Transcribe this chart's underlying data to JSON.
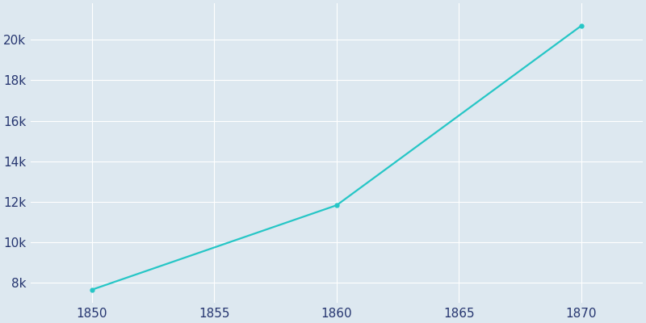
{
  "years": [
    1850,
    1860,
    1870
  ],
  "population": [
    7658,
    11830,
    20700
  ],
  "line_color": "#26c6c6",
  "background_color": "#dde8f0",
  "grid_color": "#ffffff",
  "tick_label_color": "#253570",
  "xlim": [
    1847.5,
    1872.5
  ],
  "ylim": [
    7000,
    21800
  ],
  "xticks": [
    1850,
    1855,
    1860,
    1865,
    1870
  ],
  "yticks": [
    8000,
    10000,
    12000,
    14000,
    16000,
    18000,
    20000
  ],
  "line_width": 1.6,
  "marker_size": 3.5,
  "figsize": [
    8.0,
    4.0
  ],
  "dpi": 100
}
